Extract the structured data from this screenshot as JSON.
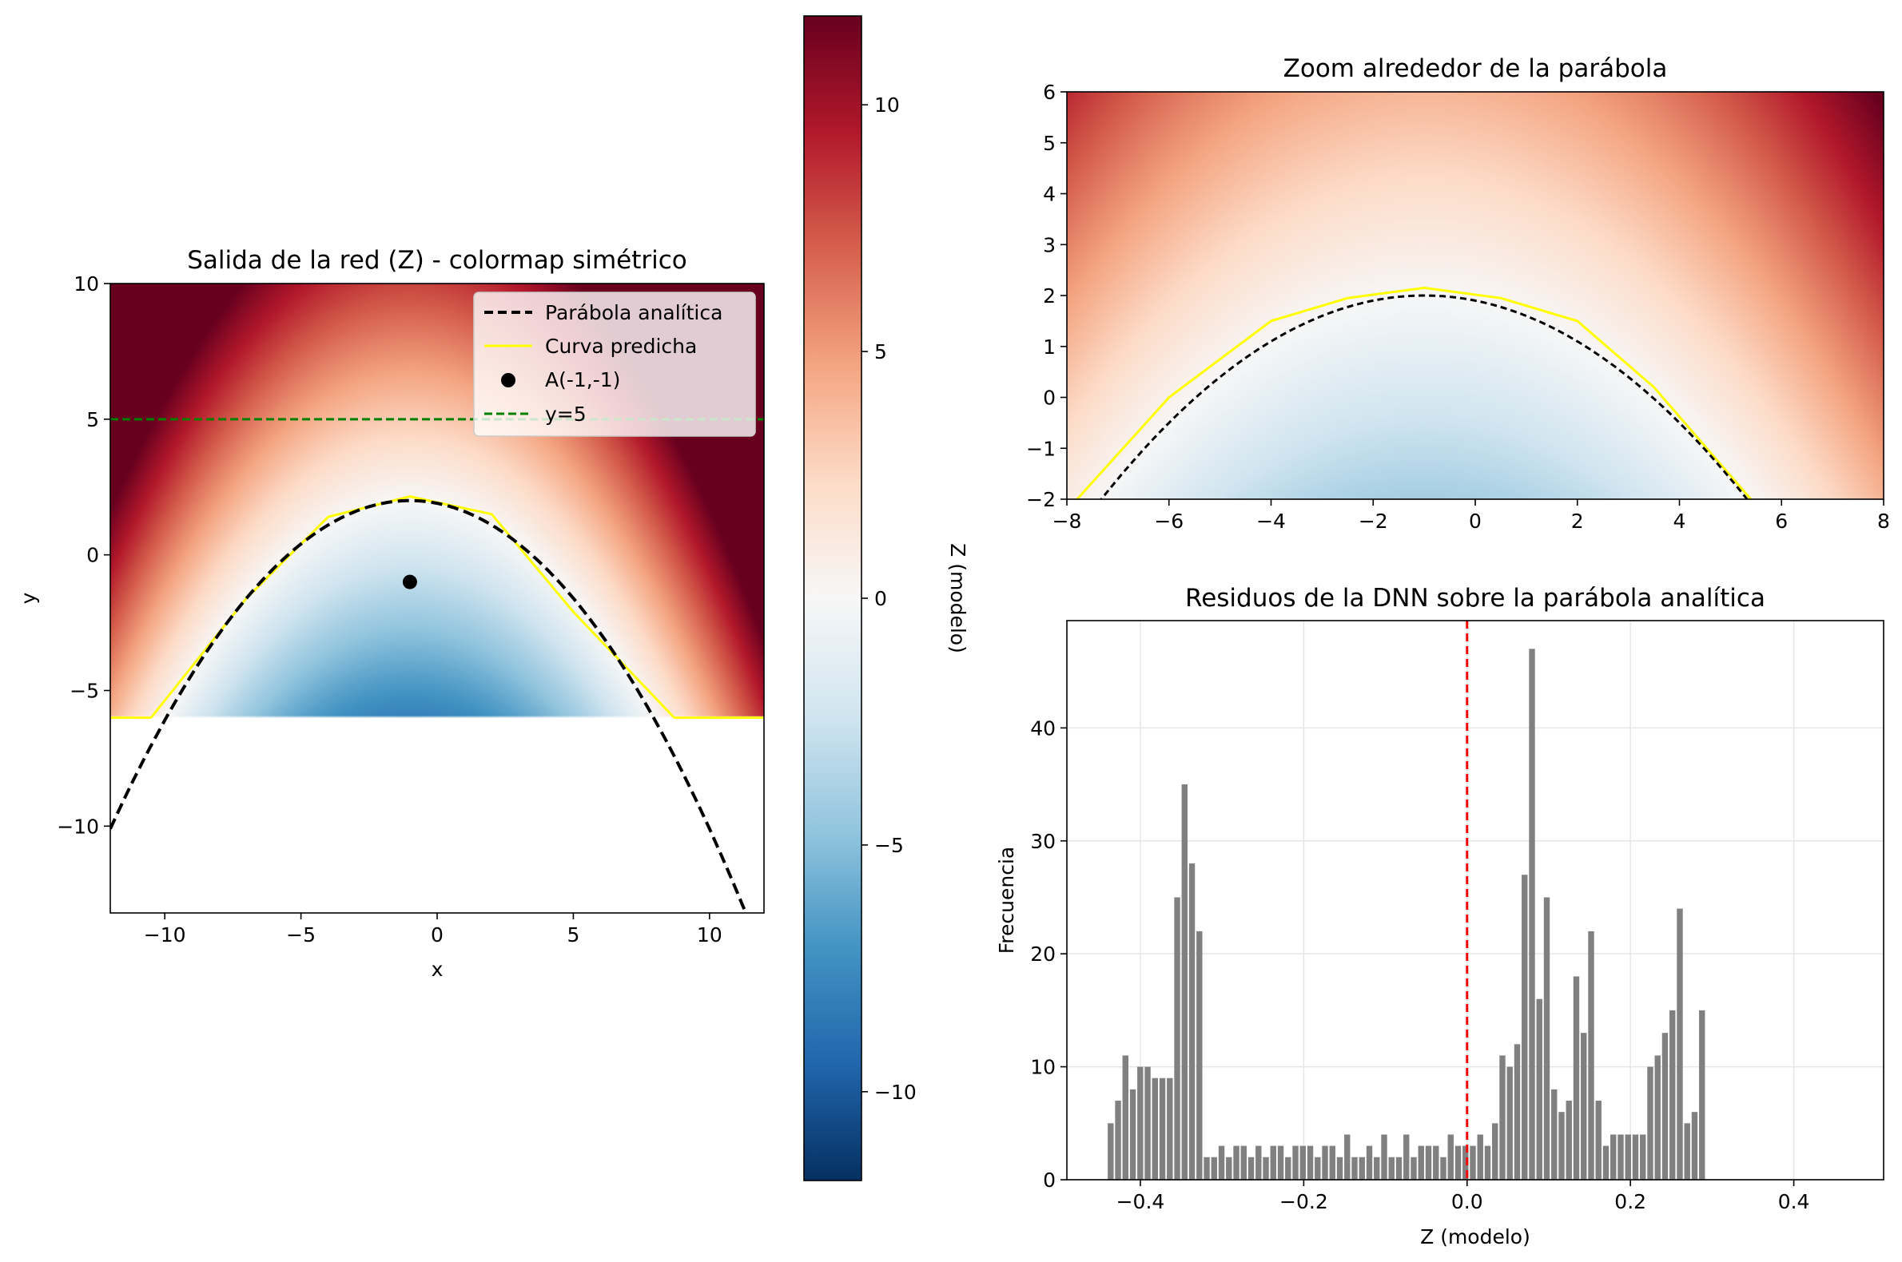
{
  "colors": {
    "parabola": "#000000",
    "predicted": "#ffff00",
    "point": "#000000",
    "hline": "#008000",
    "bars": "#808080",
    "zero_line": "#ff0000",
    "colormap": "RdBu_r"
  },
  "chart_data": [
    {
      "type": "heatmap",
      "title": "Salida de la red (Z) - colormap simétrico",
      "xlabel": "x",
      "ylabel": "y",
      "xlim": [
        -12,
        12
      ],
      "ylim": [
        -13.2,
        10
      ],
      "xticks": [
        -10,
        -5,
        0,
        5,
        10
      ],
      "yticks": [
        -10,
        -5,
        0,
        5,
        10
      ],
      "xtick_labels": [
        "−10",
        "−5",
        "0",
        "5",
        "10"
      ],
      "ytick_labels": [
        "−10",
        "−5",
        "0",
        "5",
        "10"
      ],
      "data_region": {
        "x": [
          -12,
          12
        ],
        "y": [
          -6,
          10
        ]
      },
      "field": "Z = y + 0.1*(x+1)^2 - 2 (approx. model output)",
      "colorbar": {
        "label": "Z (modelo)",
        "range": [
          -11.8,
          11.8
        ],
        "ticks": [
          -10,
          -5,
          0,
          5,
          10
        ],
        "tick_labels": [
          "−10",
          "−5",
          "0",
          "5",
          "10"
        ]
      },
      "series": [
        {
          "name": "Parábola analítica",
          "style": "dashed",
          "equation": "y = 2 - 0.1*(x+1)^2"
        },
        {
          "name": "Curva predicha",
          "style": "solid",
          "x": [
            -10.5,
            -7,
            -4,
            -1,
            2,
            5,
            8.7
          ],
          "y": [
            -6,
            -1.6,
            1.4,
            2.15,
            1.5,
            -2.1,
            -6
          ]
        },
        {
          "name": "A(-1,-1)",
          "type": "scatter",
          "x": [
            -1
          ],
          "y": [
            -1
          ]
        },
        {
          "name": "y=5",
          "style": "dashed",
          "y": 5
        }
      ],
      "legend": "top-right"
    },
    {
      "type": "heatmap",
      "title": "Zoom alrededor de la parábola",
      "xlim": [
        -8,
        8
      ],
      "ylim": [
        -2,
        6
      ],
      "xticks": [
        -8,
        -6,
        -4,
        -2,
        0,
        2,
        4,
        6,
        8
      ],
      "yticks": [
        -2,
        -1,
        0,
        1,
        2,
        3,
        4,
        5,
        6
      ],
      "xtick_labels": [
        "−8",
        "−6",
        "−4",
        "−2",
        "0",
        "2",
        "4",
        "6",
        "8"
      ],
      "ytick_labels": [
        "−2",
        "−1",
        "0",
        "1",
        "2",
        "3",
        "4",
        "5",
        "6"
      ],
      "series": [
        {
          "name": "Parábola analítica",
          "style": "dashed",
          "equation": "y = 2 - 0.1*(x+1)^2"
        },
        {
          "name": "Curva predicha",
          "style": "solid",
          "x": [
            -7.8,
            -6,
            -4,
            -2.5,
            -1,
            0.5,
            2,
            3.5,
            5.4
          ],
          "y": [
            -2,
            0.0,
            1.5,
            1.95,
            2.15,
            1.95,
            1.5,
            0.2,
            -2
          ]
        }
      ]
    },
    {
      "type": "bar",
      "title": "Residuos de la DNN sobre la parábola analítica",
      "xlabel": "Z (modelo)",
      "ylabel": "Frecuencia",
      "xlim": [
        -0.49,
        0.51
      ],
      "ylim": [
        0,
        49.5
      ],
      "xticks": [
        -0.4,
        -0.2,
        0.0,
        0.2,
        0.4
      ],
      "xtick_labels": [
        "−0.4",
        "−0.2",
        "0.0",
        "0.2",
        "0.4"
      ],
      "yticks": [
        0,
        10,
        20,
        30,
        40
      ],
      "grid": true,
      "bin_start": -0.44,
      "bin_width": 0.00905,
      "values": [
        5,
        7,
        11,
        8,
        10,
        10,
        9,
        9,
        9,
        25,
        35,
        28,
        22,
        2,
        2,
        3,
        2,
        3,
        3,
        2,
        3,
        2,
        3,
        3,
        2,
        3,
        3,
        3,
        2,
        3,
        3,
        2,
        4,
        2,
        2,
        3,
        2,
        4,
        2,
        2,
        4,
        2,
        3,
        3,
        3,
        2,
        4,
        3,
        3,
        3,
        4,
        3,
        5,
        11,
        10,
        12,
        27,
        47,
        16,
        25,
        8,
        6,
        7,
        18,
        13,
        22,
        7,
        3,
        4,
        4,
        4,
        4,
        4,
        10,
        11,
        13,
        15,
        24,
        5,
        6,
        15
      ],
      "vline": 0.0
    }
  ]
}
